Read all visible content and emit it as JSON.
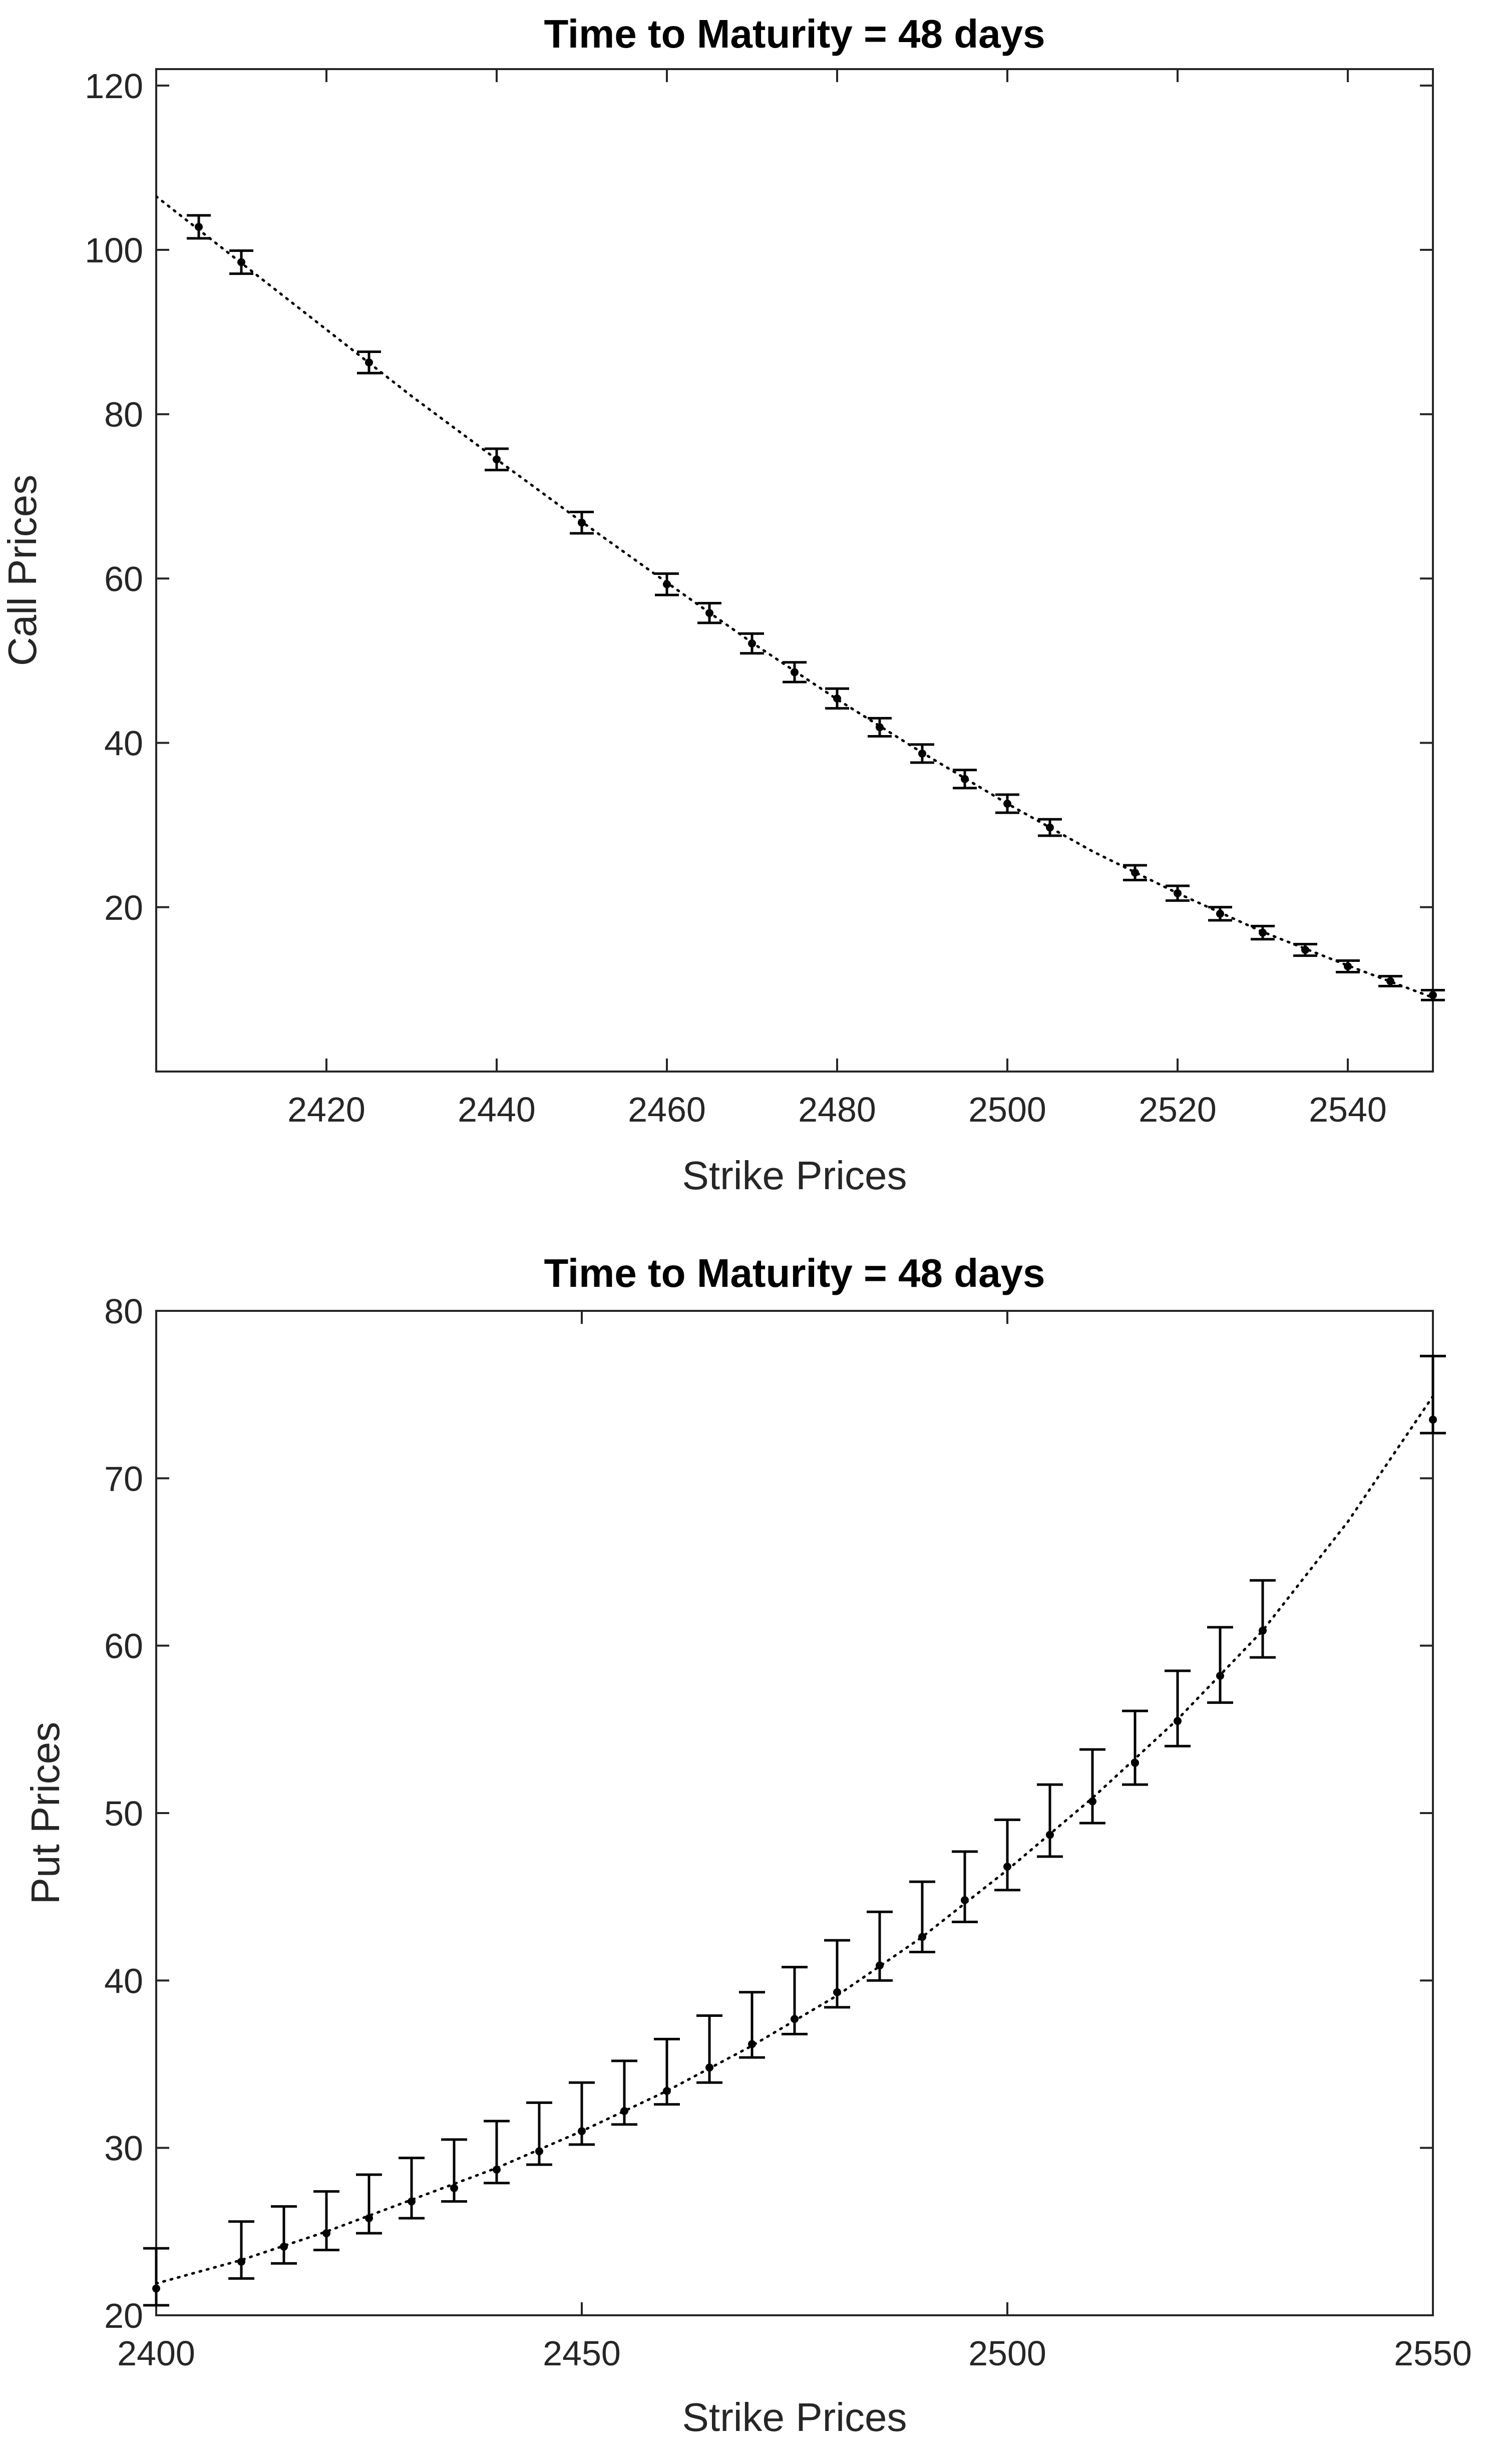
{
  "chart_data": [
    {
      "type": "scatter",
      "title": "Time to Maturity = 48 days",
      "xlabel": "Strike Prices",
      "ylabel": "Call Prices",
      "xlim": [
        2400,
        2550
      ],
      "ylim": [
        0,
        122
      ],
      "xticks": [
        2420,
        2440,
        2460,
        2480,
        2500,
        2520,
        2540
      ],
      "yticks": [
        20,
        40,
        60,
        80,
        100,
        120
      ],
      "grid": false,
      "series": [
        {
          "name": "observed",
          "points": [
            {
              "x": 2405,
              "y": 102.8,
              "lo": 101.4,
              "hi": 104.2
            },
            {
              "x": 2410,
              "y": 98.5,
              "lo": 97.1,
              "hi": 99.9
            },
            {
              "x": 2425,
              "y": 86.3,
              "lo": 85.0,
              "hi": 87.6
            },
            {
              "x": 2440,
              "y": 74.5,
              "lo": 73.2,
              "hi": 75.8
            },
            {
              "x": 2450,
              "y": 66.8,
              "lo": 65.5,
              "hi": 68.1
            },
            {
              "x": 2460,
              "y": 59.3,
              "lo": 58.0,
              "hi": 60.6
            },
            {
              "x": 2465,
              "y": 55.8,
              "lo": 54.6,
              "hi": 57.0
            },
            {
              "x": 2470,
              "y": 52.1,
              "lo": 50.9,
              "hi": 53.3
            },
            {
              "x": 2475,
              "y": 48.6,
              "lo": 47.4,
              "hi": 49.8
            },
            {
              "x": 2480,
              "y": 45.4,
              "lo": 44.2,
              "hi": 46.6
            },
            {
              "x": 2485,
              "y": 41.9,
              "lo": 40.8,
              "hi": 43.0
            },
            {
              "x": 2490,
              "y": 38.7,
              "lo": 37.6,
              "hi": 39.8
            },
            {
              "x": 2495,
              "y": 35.6,
              "lo": 34.5,
              "hi": 36.7
            },
            {
              "x": 2500,
              "y": 32.6,
              "lo": 31.5,
              "hi": 33.7
            },
            {
              "x": 2505,
              "y": 29.7,
              "lo": 28.7,
              "hi": 30.7
            },
            {
              "x": 2515,
              "y": 24.2,
              "lo": 23.3,
              "hi": 25.1
            },
            {
              "x": 2520,
              "y": 21.7,
              "lo": 20.8,
              "hi": 22.6
            },
            {
              "x": 2525,
              "y": 19.2,
              "lo": 18.4,
              "hi": 20.0
            },
            {
              "x": 2530,
              "y": 16.9,
              "lo": 16.1,
              "hi": 17.7
            },
            {
              "x": 2535,
              "y": 14.8,
              "lo": 14.1,
              "hi": 15.5
            },
            {
              "x": 2540,
              "y": 12.8,
              "lo": 12.1,
              "hi": 13.5
            },
            {
              "x": 2545,
              "y": 11.0,
              "lo": 10.4,
              "hi": 11.6
            },
            {
              "x": 2550,
              "y": 9.3,
              "lo": 8.7,
              "hi": 9.9
            }
          ]
        },
        {
          "name": "fitted",
          "style": "dotted",
          "x": [
            2400,
            2410,
            2420,
            2430,
            2440,
            2450,
            2460,
            2470,
            2480,
            2490,
            2500,
            2510,
            2520,
            2530,
            2540,
            2550
          ],
          "y": [
            106.5,
            98.4,
            90.3,
            82.2,
            74.5,
            66.9,
            59.5,
            52.2,
            45.3,
            38.8,
            32.6,
            26.8,
            21.7,
            17.0,
            12.9,
            9.0
          ]
        }
      ]
    },
    {
      "type": "scatter",
      "title": "Time to Maturity = 48 days",
      "xlabel": "Strike Prices",
      "ylabel": "Put Prices",
      "xlim": [
        2400,
        2550
      ],
      "ylim": [
        20,
        80
      ],
      "xticks": [
        2400,
        2450,
        2500,
        2550
      ],
      "yticks": [
        20,
        30,
        40,
        50,
        60,
        70,
        80
      ],
      "grid": false,
      "series": [
        {
          "name": "observed",
          "points": [
            {
              "x": 2400,
              "y": 21.6,
              "lo": 20.6,
              "hi": 24.0
            },
            {
              "x": 2410,
              "y": 23.2,
              "lo": 22.2,
              "hi": 25.6
            },
            {
              "x": 2415,
              "y": 24.1,
              "lo": 23.1,
              "hi": 26.5
            },
            {
              "x": 2420,
              "y": 24.9,
              "lo": 23.9,
              "hi": 27.4
            },
            {
              "x": 2425,
              "y": 25.8,
              "lo": 24.9,
              "hi": 28.4
            },
            {
              "x": 2430,
              "y": 26.8,
              "lo": 25.8,
              "hi": 29.4
            },
            {
              "x": 2435,
              "y": 27.6,
              "lo": 26.8,
              "hi": 30.5
            },
            {
              "x": 2440,
              "y": 28.7,
              "lo": 27.9,
              "hi": 31.6
            },
            {
              "x": 2445,
              "y": 29.8,
              "lo": 29.0,
              "hi": 32.7
            },
            {
              "x": 2450,
              "y": 31.0,
              "lo": 30.2,
              "hi": 33.9
            },
            {
              "x": 2455,
              "y": 32.2,
              "lo": 31.4,
              "hi": 35.2
            },
            {
              "x": 2460,
              "y": 33.4,
              "lo": 32.6,
              "hi": 36.5
            },
            {
              "x": 2465,
              "y": 34.8,
              "lo": 33.9,
              "hi": 37.9
            },
            {
              "x": 2470,
              "y": 36.2,
              "lo": 35.4,
              "hi": 39.3
            },
            {
              "x": 2475,
              "y": 37.7,
              "lo": 36.8,
              "hi": 40.8
            },
            {
              "x": 2480,
              "y": 39.3,
              "lo": 38.4,
              "hi": 42.4
            },
            {
              "x": 2485,
              "y": 40.9,
              "lo": 40.0,
              "hi": 44.1
            },
            {
              "x": 2490,
              "y": 42.6,
              "lo": 41.7,
              "hi": 45.9
            },
            {
              "x": 2495,
              "y": 44.8,
              "lo": 43.5,
              "hi": 47.7
            },
            {
              "x": 2500,
              "y": 46.8,
              "lo": 45.4,
              "hi": 49.6
            },
            {
              "x": 2505,
              "y": 48.7,
              "lo": 47.4,
              "hi": 51.7
            },
            {
              "x": 2510,
              "y": 50.7,
              "lo": 49.4,
              "hi": 53.8
            },
            {
              "x": 2515,
              "y": 53.0,
              "lo": 51.7,
              "hi": 56.1
            },
            {
              "x": 2520,
              "y": 55.5,
              "lo": 54.0,
              "hi": 58.5
            },
            {
              "x": 2525,
              "y": 58.2,
              "lo": 56.6,
              "hi": 61.1
            },
            {
              "x": 2530,
              "y": 60.9,
              "lo": 59.3,
              "hi": 63.9
            },
            {
              "x": 2550,
              "y": 73.5,
              "lo": 72.7,
              "hi": 77.3
            }
          ]
        },
        {
          "name": "fitted",
          "style": "dotted",
          "x": [
            2400,
            2410,
            2420,
            2430,
            2440,
            2450,
            2460,
            2470,
            2480,
            2490,
            2500,
            2510,
            2520,
            2530,
            2540,
            2550
          ],
          "y": [
            21.9,
            23.3,
            25.0,
            26.9,
            28.8,
            31.0,
            33.4,
            36.1,
            39.1,
            42.6,
            46.6,
            50.9,
            55.6,
            60.9,
            67.4,
            74.9
          ]
        }
      ]
    }
  ]
}
